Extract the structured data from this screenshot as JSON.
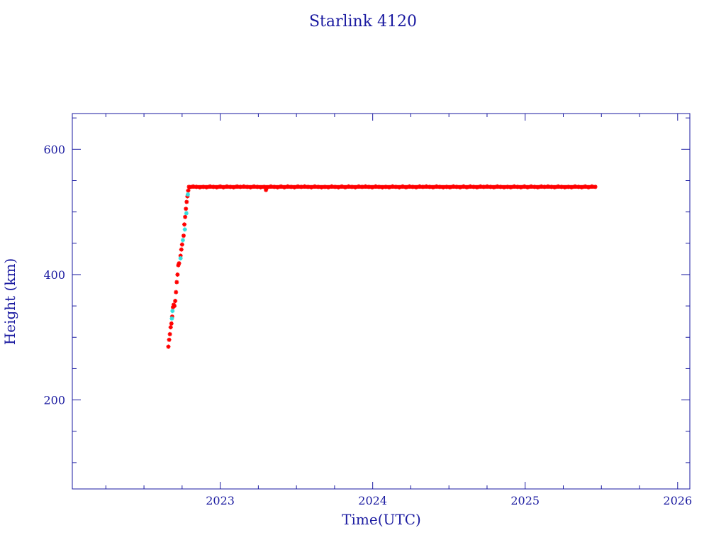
{
  "chart_data": {
    "type": "scatter",
    "title": "Starlink 4120",
    "xlabel": "Time(UTC)",
    "ylabel": "Height (km)",
    "xlim": [
      2022.03,
      2026.08
    ],
    "ylim": [
      58,
      657
    ],
    "x_major_ticks": [
      2023,
      2024,
      2025,
      2026
    ],
    "x_tick_labels": [
      "2023",
      "2024",
      "2025",
      "2026"
    ],
    "x_minor_ticks": [
      2022.25,
      2022.5,
      2022.75,
      2023.25,
      2023.5,
      2023.75,
      2024.25,
      2024.5,
      2024.75,
      2025.25,
      2025.5,
      2025.75
    ],
    "y_major_ticks": [
      200,
      400,
      600
    ],
    "y_tick_labels": [
      "200",
      "400",
      "600"
    ],
    "y_minor_ticks": [
      100,
      150,
      250,
      300,
      350,
      450,
      500,
      550,
      650
    ],
    "grid": false,
    "colors": {
      "axis": "#1a1aa0",
      "series_main": "#ff0000",
      "series_alt": "#33dddd"
    },
    "series": [
      {
        "color": "#ff0000",
        "marker": "asterisk",
        "points": [
          [
            2022.66,
            285
          ],
          [
            2022.665,
            296
          ],
          [
            2022.67,
            305
          ],
          [
            2022.675,
            316
          ],
          [
            2022.68,
            322
          ],
          [
            2022.685,
            333
          ],
          [
            2022.69,
            348
          ],
          [
            2022.695,
            352
          ],
          [
            2022.7,
            350
          ],
          [
            2022.705,
            358
          ],
          [
            2022.71,
            372
          ],
          [
            2022.715,
            388
          ],
          [
            2022.72,
            400
          ],
          [
            2022.725,
            415
          ],
          [
            2022.73,
            418
          ],
          [
            2022.74,
            430
          ],
          [
            2022.745,
            440
          ],
          [
            2022.75,
            448
          ],
          [
            2022.76,
            462
          ],
          [
            2022.765,
            480
          ],
          [
            2022.77,
            492
          ],
          [
            2022.775,
            505
          ],
          [
            2022.78,
            516
          ],
          [
            2022.785,
            525
          ],
          [
            2022.79,
            534
          ],
          [
            2022.795,
            540
          ],
          [
            2023.3,
            535
          ]
        ],
        "plateau": {
          "x_start": 2022.8,
          "x_end": 2025.46,
          "y": 540
        }
      },
      {
        "color": "#33dddd",
        "marker": "asterisk",
        "points": [
          [
            2022.683,
            330
          ],
          [
            2022.687,
            342
          ],
          [
            2022.74,
            426
          ],
          [
            2022.755,
            455
          ],
          [
            2022.768,
            472
          ],
          [
            2022.778,
            498
          ],
          [
            2022.788,
            528
          ]
        ]
      }
    ]
  }
}
